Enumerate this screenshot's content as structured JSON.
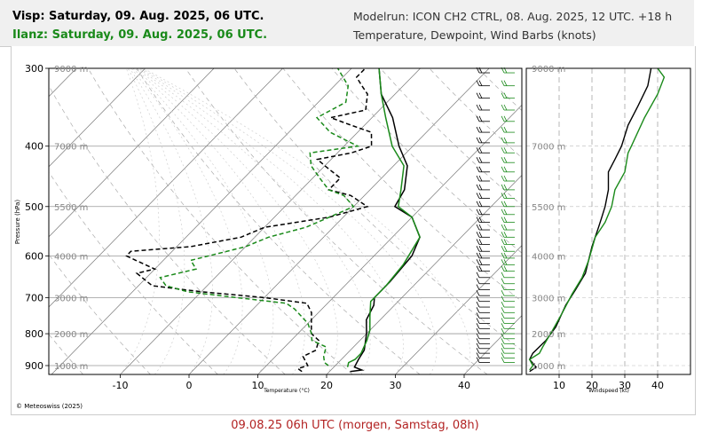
{
  "header": {
    "line1": "Visp: Saturday, 09. Aug. 2025, 06 UTC.",
    "line2": "Ilanz: Saturday, 09. Aug. 2025, 06 UTC.",
    "modelrun": "Modelrun: ICON CH2 CTRL, 08. Aug. 2025, 12 UTC. +18 h",
    "subtitle": "Temperature, Dewpoint, Wind Barbs (knots)"
  },
  "caption": "09.08.25 06h UTC (morgen, Samstag, 08h)",
  "copyright": "© Meteoswiss (2025)",
  "colors": {
    "visp": "#000000",
    "ilanz": "#1a8a1a",
    "caption": "#b22222",
    "header_bg": "#f0f0f0"
  },
  "chart_data": [
    {
      "type": "line",
      "name": "skew-t",
      "xlabel": "Temperature (°C)",
      "ylabel": "Pressure (hPa)",
      "x_ticks": [
        -10,
        0,
        10,
        20,
        30,
        40
      ],
      "y_ticks": [
        300,
        400,
        500,
        600,
        700,
        800,
        900
      ],
      "height_labels": [
        {
          "label": "9000 m",
          "p": 300
        },
        {
          "label": "7000 m",
          "p": 400
        },
        {
          "label": "5500 m",
          "p": 500
        },
        {
          "label": "4000 m",
          "p": 600
        },
        {
          "label": "3000 m",
          "p": 700
        },
        {
          "label": "2000 m",
          "p": 800
        },
        {
          "label": "1000 m",
          "p": 900
        }
      ],
      "series": [
        {
          "id": "visp_temp",
          "color": "#000000",
          "dash": false,
          "points": [
            [
              23,
              920
            ],
            [
              24.5,
              915
            ],
            [
              23,
              905
            ],
            [
              22.5,
              880
            ],
            [
              22,
              850
            ],
            [
              20,
              800
            ],
            [
              18,
              760
            ],
            [
              17,
              720
            ],
            [
              16,
              700
            ],
            [
              16,
              660
            ],
            [
              15.5,
              600
            ],
            [
              14,
              560
            ],
            [
              10,
              520
            ],
            [
              6,
              500
            ],
            [
              5,
              470
            ],
            [
              2,
              430
            ],
            [
              -2,
              400
            ],
            [
              -7,
              360
            ],
            [
              -12,
              330
            ],
            [
              -16,
              300
            ]
          ]
        },
        {
          "id": "ilanz_temp",
          "color": "#1a8a1a",
          "dash": false,
          "points": [
            [
              22,
              905
            ],
            [
              21.5,
              890
            ],
            [
              22,
              880
            ],
            [
              22,
              860
            ],
            [
              21,
              820
            ],
            [
              20,
              790
            ],
            [
              18,
              750
            ],
            [
              16,
              710
            ],
            [
              16,
              670
            ],
            [
              15.5,
              620
            ],
            [
              14,
              560
            ],
            [
              10,
              520
            ],
            [
              6.5,
              500
            ],
            [
              4.5,
              470
            ],
            [
              1.5,
              430
            ],
            [
              -3,
              400
            ],
            [
              -8,
              360
            ],
            [
              -12,
              330
            ],
            [
              -16,
              300
            ]
          ]
        },
        {
          "id": "visp_dewp",
          "color": "#000000",
          "dash": true,
          "points": [
            [
              16,
              920
            ],
            [
              15,
              910
            ],
            [
              16,
              900
            ],
            [
              14,
              870
            ],
            [
              15,
              850
            ],
            [
              14,
              820
            ],
            [
              12,
              800
            ],
            [
              11,
              780
            ],
            [
              9,
              740
            ],
            [
              7,
              715
            ],
            [
              0,
              700
            ],
            [
              -10,
              685
            ],
            [
              -18,
              670
            ],
            [
              -22,
              640
            ],
            [
              -20,
              630
            ],
            [
              -24,
              610
            ],
            [
              -26,
              600
            ],
            [
              -26,
              590
            ],
            [
              -18,
              580
            ],
            [
              -12,
              560
            ],
            [
              -10,
              540
            ],
            [
              -2,
              520
            ],
            [
              2,
              500
            ],
            [
              -2,
              480
            ],
            [
              -6,
              470
            ],
            [
              -6,
              450
            ],
            [
              -10,
              430
            ],
            [
              -12,
              420
            ],
            [
              -8,
              410
            ],
            [
              -6,
              400
            ],
            [
              -8,
              380
            ],
            [
              -12,
              370
            ],
            [
              -16,
              360
            ],
            [
              -12,
              350
            ],
            [
              -14,
              330
            ],
            [
              -16,
              320
            ],
            [
              -18,
              310
            ],
            [
              -18,
              300
            ]
          ]
        },
        {
          "id": "ilanz_dewp",
          "color": "#1a8a1a",
          "dash": true,
          "points": [
            [
              19,
              900
            ],
            [
              18,
              890
            ],
            [
              17,
              870
            ],
            [
              16,
              840
            ],
            [
              13,
              820
            ],
            [
              12,
              800
            ],
            [
              10,
              770
            ],
            [
              6,
              730
            ],
            [
              4,
              715
            ],
            [
              -4,
              700
            ],
            [
              -12,
              685
            ],
            [
              -16,
              670
            ],
            [
              -18,
              650
            ],
            [
              -14,
              630
            ],
            [
              -16,
              610
            ],
            [
              -10,
              580
            ],
            [
              -8,
              560
            ],
            [
              -4,
              540
            ],
            [
              -2,
              520
            ],
            [
              0,
              500
            ],
            [
              -3,
              480
            ],
            [
              -6,
              470
            ],
            [
              -9,
              450
            ],
            [
              -12,
              430
            ],
            [
              -14,
              410
            ],
            [
              -8,
              400
            ],
            [
              -14,
              380
            ],
            [
              -18,
              360
            ],
            [
              -16,
              340
            ],
            [
              -18,
              320
            ],
            [
              -22,
              300
            ]
          ]
        }
      ]
    },
    {
      "type": "line",
      "name": "wind-profile",
      "xlabel": "Windspeed (kt)",
      "x_ticks": [
        10,
        20,
        30,
        40
      ],
      "height_labels": [
        "9000 m",
        "7000 m",
        "5500 m",
        "4000 m",
        "3000 m",
        "2000 m",
        "1000 m"
      ],
      "series": [
        {
          "id": "visp_wind",
          "color": "#000000",
          "points": [
            [
              1,
              920
            ],
            [
              3,
              905
            ],
            [
              1,
              880
            ],
            [
              2,
              860
            ],
            [
              6,
              820
            ],
            [
              9,
              780
            ],
            [
              12,
              720
            ],
            [
              15,
              680
            ],
            [
              18,
              640
            ],
            [
              20,
              580
            ],
            [
              22,
              540
            ],
            [
              23,
              520
            ],
            [
              24,
              500
            ],
            [
              25,
              470
            ],
            [
              25,
              440
            ],
            [
              27,
              420
            ],
            [
              29,
              400
            ],
            [
              31,
              370
            ],
            [
              34,
              345
            ],
            [
              37,
              320
            ],
            [
              38,
              300
            ]
          ]
        },
        {
          "id": "ilanz_wind",
          "color": "#1a8a1a",
          "points": [
            [
              1,
              915
            ],
            [
              2,
              900
            ],
            [
              1,
              880
            ],
            [
              4,
              860
            ],
            [
              5,
              840
            ],
            [
              8,
              790
            ],
            [
              11,
              740
            ],
            [
              14,
              690
            ],
            [
              17,
              650
            ],
            [
              19,
              610
            ],
            [
              21,
              560
            ],
            [
              24,
              530
            ],
            [
              26,
              500
            ],
            [
              27,
              470
            ],
            [
              30,
              440
            ],
            [
              31,
              410
            ],
            [
              32,
              400
            ],
            [
              36,
              360
            ],
            [
              40,
              330
            ],
            [
              42,
              310
            ],
            [
              40,
              300
            ]
          ]
        }
      ]
    }
  ]
}
